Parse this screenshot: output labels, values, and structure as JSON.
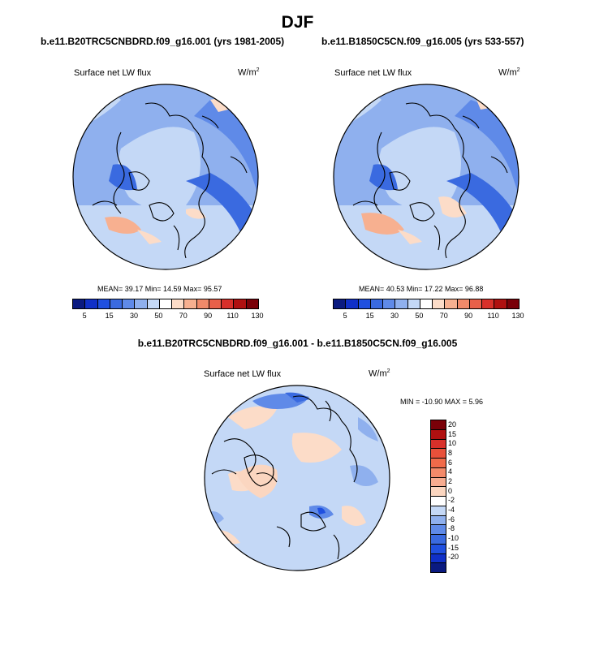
{
  "page": {
    "title": "DJF"
  },
  "panels": [
    {
      "title": "b.e11.B20TRC5CNBDRD.f09_g16.001 (yrs 1981-2005)",
      "variable": "Surface net LW flux",
      "units": "W/m",
      "units_exp": "2",
      "stats": "MEAN=  39.17  Min=  14.59  Max=  95.57"
    },
    {
      "title": "b.e11.B1850C5CN.f09_g16.005 (yrs 533-557)",
      "variable": "Surface net LW flux",
      "units": "W/m",
      "units_exp": "2",
      "stats": "MEAN=  40.53  Min=  17.22  Max=  96.88"
    }
  ],
  "diff": {
    "title": "b.e11.B20TRC5CNBDRD.f09_g16.001 - b.e11.B1850C5CN.f09_g16.005",
    "variable": "Surface net LW flux",
    "units": "W/m",
    "units_exp": "2",
    "stats": "MIN = -10.90 MAX =   5.96"
  },
  "colorbar_abs": {
    "labels": [
      "5",
      "15",
      "30",
      "50",
      "70",
      "90",
      "110",
      "130"
    ],
    "colors": [
      "#0a1a80",
      "#1030c8",
      "#2050e0",
      "#3a6ae0",
      "#5f8ae8",
      "#8fb0ee",
      "#c4d8f6",
      "#ffffff",
      "#fcdcc8",
      "#f7b090",
      "#f08a6a",
      "#e8604a",
      "#d8302a",
      "#b01010",
      "#7a0008"
    ]
  },
  "colorbar_diff": {
    "labels": [
      "20",
      "15",
      "10",
      "8",
      "6",
      "4",
      "2",
      "0",
      "-2",
      "-4",
      "-6",
      "-8",
      "-10",
      "-15",
      "-20"
    ],
    "colors": [
      "#7a0008",
      "#b01010",
      "#d8302a",
      "#e8503a",
      "#f06a4a",
      "#f38a6a",
      "#f7ac90",
      "#fbd6c0",
      "#ffffff",
      "#c4d8f6",
      "#8fb0ee",
      "#5f8ae8",
      "#3a6ae0",
      "#2050e0",
      "#1030c8",
      "#0a1a80"
    ]
  }
}
